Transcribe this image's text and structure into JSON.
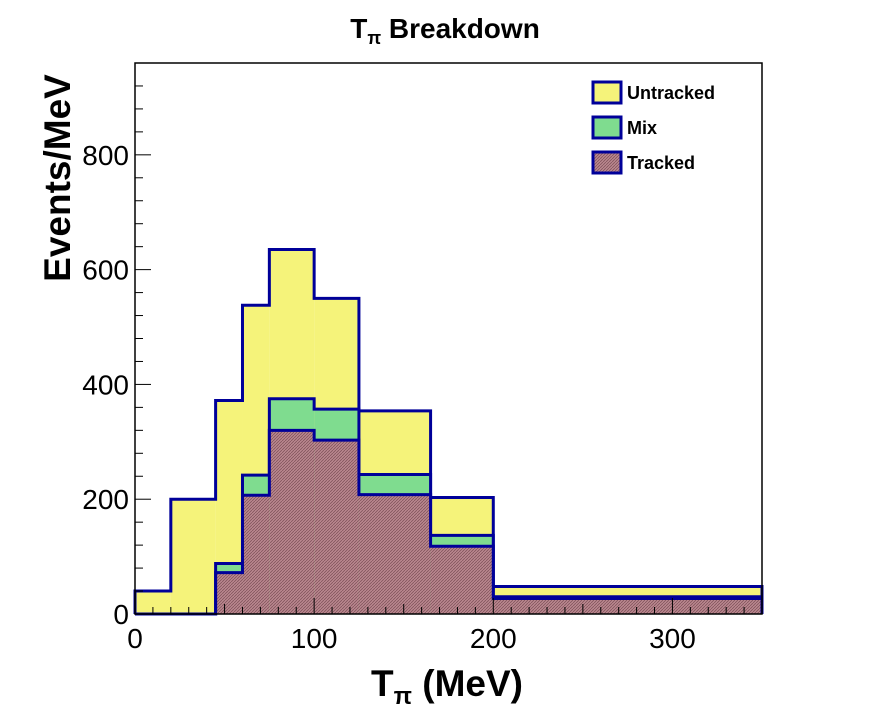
{
  "chart_data": {
    "type": "bar",
    "histogram": "stacked-step",
    "title_main": "T",
    "title_sub": "π",
    "title_rest": " Breakdown",
    "xlabel_main": "T",
    "xlabel_sub": "π",
    "xlabel_rest": " (MeV)",
    "ylabel": "Events/MeV",
    "xlim": [
      0,
      350
    ],
    "ylim": [
      0,
      960
    ],
    "x_ticks": [
      0,
      100,
      200,
      300
    ],
    "y_ticks": [
      0,
      200,
      400,
      600,
      800
    ],
    "grid": false,
    "legend_position": "top-right",
    "bin_edges": [
      0,
      20,
      45,
      60,
      75,
      100,
      125,
      165,
      200,
      350
    ],
    "series": [
      {
        "name": "Untracked",
        "color": "#f5f37a",
        "values": [
          40,
          200,
          372,
          538,
          635,
          550,
          354,
          203,
          48
        ]
      },
      {
        "name": "Mix",
        "color": "#7fdc8f",
        "values": [
          0,
          0,
          88,
          242,
          375,
          357,
          243,
          137,
          30
        ]
      },
      {
        "name": "Tracked",
        "color": "#b9868e",
        "values": [
          0,
          0,
          72,
          207,
          320,
          303,
          208,
          118,
          27
        ]
      }
    ],
    "outline_color": "#000099"
  }
}
